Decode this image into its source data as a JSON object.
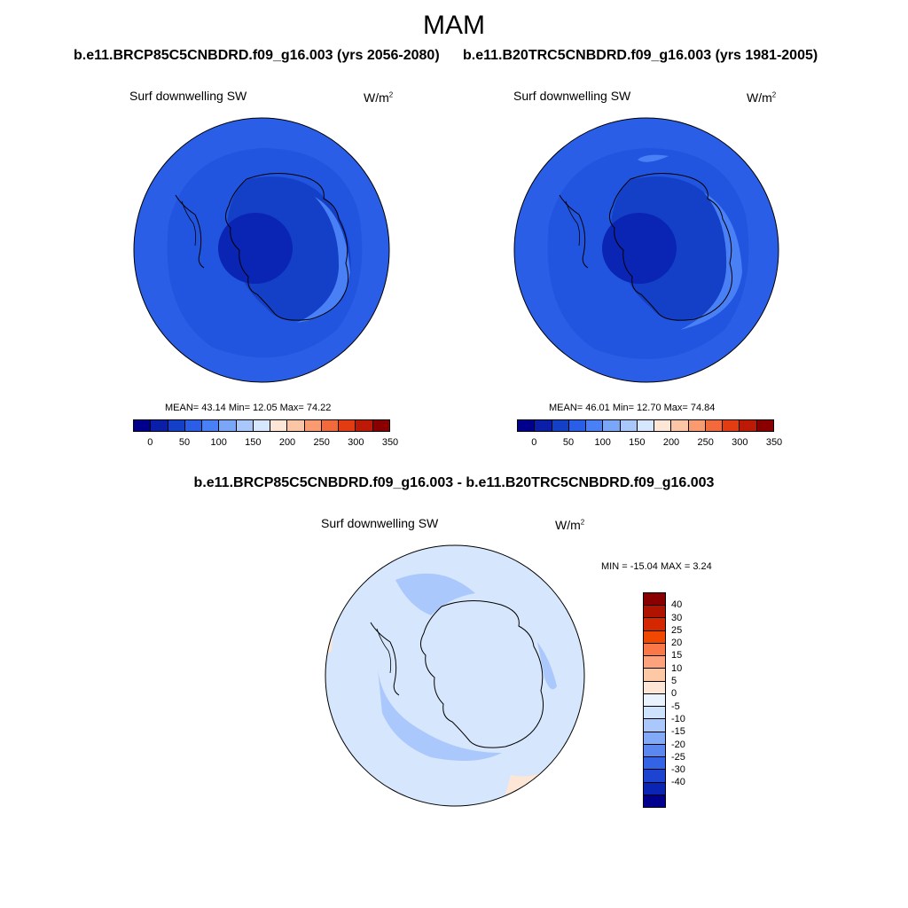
{
  "title": "MAM",
  "panels": [
    {
      "subtitle": "b.e11.BRCP85C5CNBDRD.f09_g16.003 (yrs 2056-2080)",
      "variable": "Surf downwelling SW",
      "units_base": "W/m",
      "units_exp": "2",
      "stats": "MEAN=  43.14  Min=  12.05  Max=  74.22",
      "colorbar_ticks": [
        "0",
        "50",
        "100",
        "150",
        "200",
        "250",
        "300",
        "350"
      ]
    },
    {
      "subtitle": "b.e11.B20TRC5CNBDRD.f09_g16.003 (yrs 1981-2005)",
      "variable": "Surf downwelling SW",
      "units_base": "W/m",
      "units_exp": "2",
      "stats": "MEAN=  46.01  Min=  12.70  Max=  74.84",
      "colorbar_ticks": [
        "0",
        "50",
        "100",
        "150",
        "200",
        "250",
        "300",
        "350"
      ]
    }
  ],
  "diff": {
    "subtitle": "b.e11.BRCP85C5CNBDRD.f09_g16.003 - b.e11.B20TRC5CNBDRD.f09_g16.003",
    "variable": "Surf downwelling SW",
    "units_base": "W/m",
    "units_exp": "2",
    "stats": "MIN = -15.04 MAX =   3.24",
    "colorbar_ticks": [
      "40",
      "30",
      "25",
      "20",
      "15",
      "10",
      "5",
      "0",
      "-5",
      "-10",
      "-15",
      "-20",
      "-25",
      "-30",
      "-40"
    ]
  },
  "colors": {
    "abs_scale": [
      "#00008c",
      "#0a1eaa",
      "#1440c8",
      "#2a5ee6",
      "#4a80f5",
      "#7aa6f8",
      "#a9c7fb",
      "#d6e6fd",
      "#fde6d6",
      "#fcc6a6",
      "#fa9a70",
      "#f26a3c",
      "#e23c12",
      "#bc1a06",
      "#8a0000"
    ],
    "diff_scale": [
      "#8a0000",
      "#b01400",
      "#d62800",
      "#f04800",
      "#fa7848",
      "#fca27c",
      "#fdc8a6",
      "#fde6d6",
      "#eaf2fe",
      "#cfe2fd",
      "#aac8fb",
      "#82aaf7",
      "#5a88f0",
      "#3464e6",
      "#1c44d0",
      "#0a24b4",
      "#00008c"
    ],
    "ocean": "#2a5ee6",
    "continent": "#1440c8",
    "pole": "#0a24b4",
    "coast": "#4a80f5",
    "diff_base": "#d6e6fd",
    "diff_band": "#aac8fb",
    "diff_pos": "#fde6d6"
  }
}
